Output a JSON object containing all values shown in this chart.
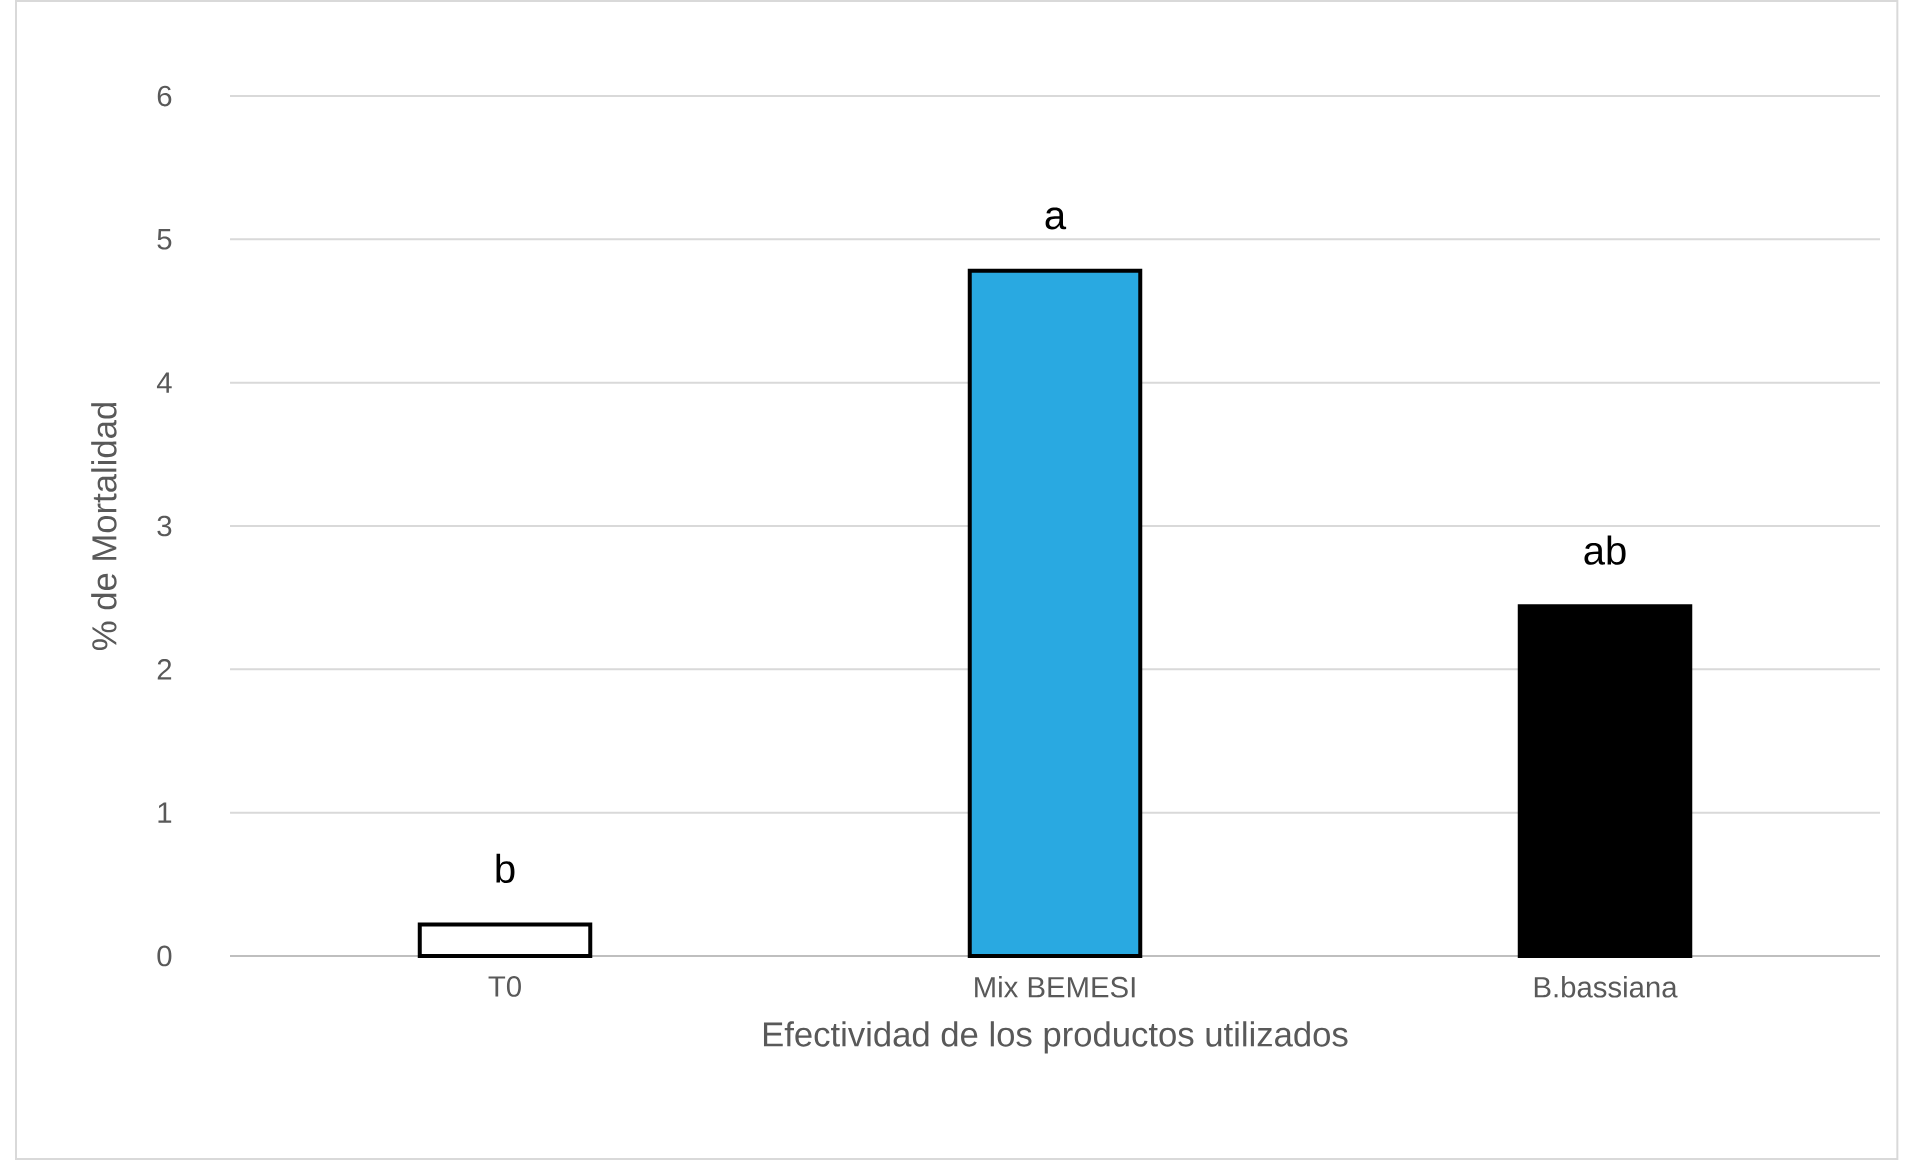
{
  "chart_data": {
    "type": "bar",
    "xlabel": "Efectividad de los productos utilizados",
    "ylabel": "% de Mortalidad",
    "categories": [
      "T0",
      "Mix BEMESI",
      "B.bassiana"
    ],
    "values": [
      0.22,
      4.78,
      2.44
    ],
    "colors": [
      "#ffffff",
      "#29a9e1",
      "#000000"
    ],
    "ylim": [
      0,
      6
    ],
    "yticks": [
      0,
      1,
      2,
      3,
      4,
      5,
      6
    ],
    "grid": "y",
    "annotations": [
      {
        "text": "b",
        "x": "T0",
        "y": 0.22
      },
      {
        "text": "a",
        "x": "Mix BEMESI",
        "y": 4.78
      },
      {
        "text": "ab",
        "x": "B.bassiana",
        "y": 2.44
      }
    ]
  }
}
